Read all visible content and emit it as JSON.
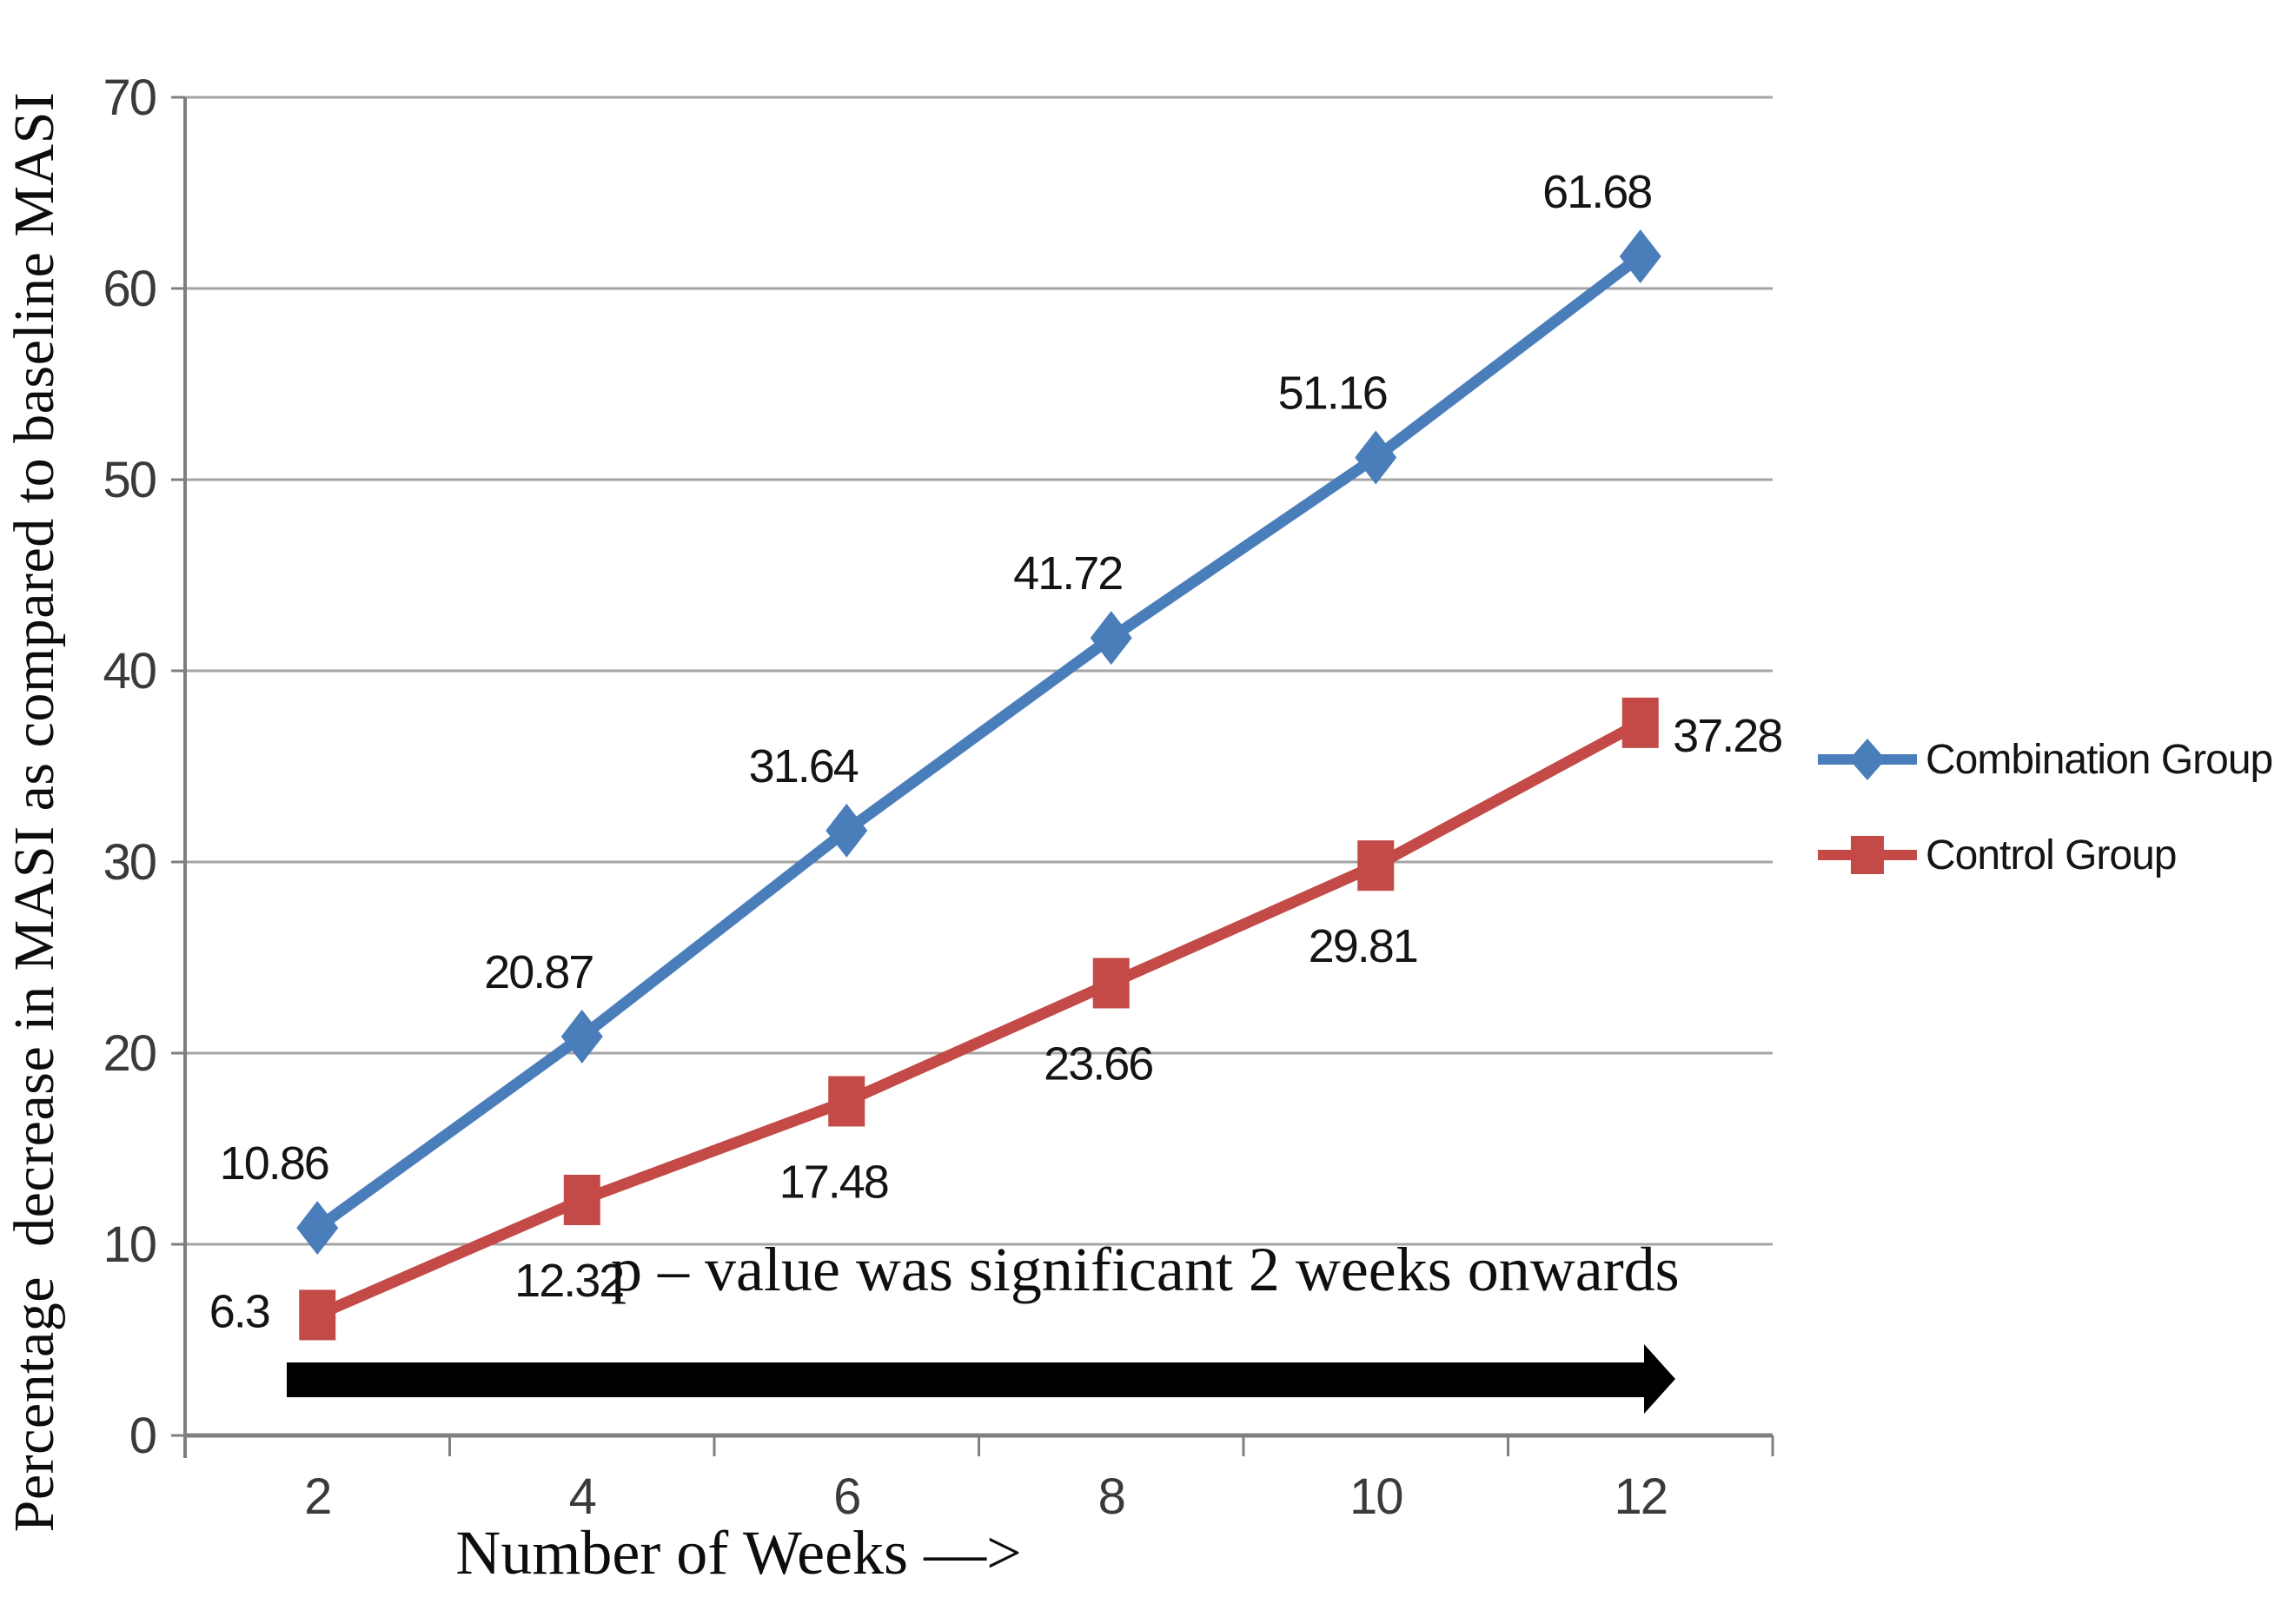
{
  "figure": {
    "background": "#ffffff"
  },
  "chart_data": {
    "type": "line",
    "title": "",
    "xlabel": "Number of Weeks —>",
    "ylabel": "Percentage  decrease in MASI as compared to baseline MASI",
    "x": [
      2,
      4,
      6,
      8,
      10,
      12
    ],
    "x_tick_labels": [
      "2",
      "4",
      "6",
      "8",
      "10",
      "12"
    ],
    "ylim": [
      0,
      70
    ],
    "y_ticks": [
      0,
      10,
      20,
      30,
      40,
      50,
      60,
      70
    ],
    "y_tick_labels": [
      "0",
      "10",
      "20",
      "30",
      "40",
      "50",
      "60",
      "70"
    ],
    "grid": true,
    "legend_position": "right-middle",
    "series": [
      {
        "name": "Combination Group",
        "color": "#4A7EBB",
        "marker": "diamond",
        "values": [
          10.86,
          20.87,
          31.64,
          41.72,
          51.16,
          61.68
        ],
        "data_labels": [
          "10.86",
          "20.87",
          "31.64",
          "41.72",
          "51.16",
          "61.68"
        ],
        "label_placement": [
          "above",
          "above",
          "above",
          "above",
          "above",
          "above"
        ]
      },
      {
        "name": "Control Group",
        "color": "#C34A46",
        "marker": "square",
        "values": [
          6.3,
          12.32,
          17.48,
          23.66,
          29.81,
          37.28
        ],
        "data_labels": [
          "6.3",
          "12.32",
          "17.48",
          "23.66",
          "29.81",
          "37.28"
        ],
        "label_placement": [
          "left",
          "below",
          "below",
          "below",
          "below",
          "right"
        ]
      }
    ],
    "annotation": {
      "text": "p – value was significant 2 weeks onwards",
      "has_black_arrow": true,
      "arrow_color": "#000000",
      "arrow_span_weeks": [
        2,
        12
      ]
    },
    "axis_colors": {
      "gridline": "#a5a5a5",
      "axis_line": "#7f7f7f"
    }
  }
}
